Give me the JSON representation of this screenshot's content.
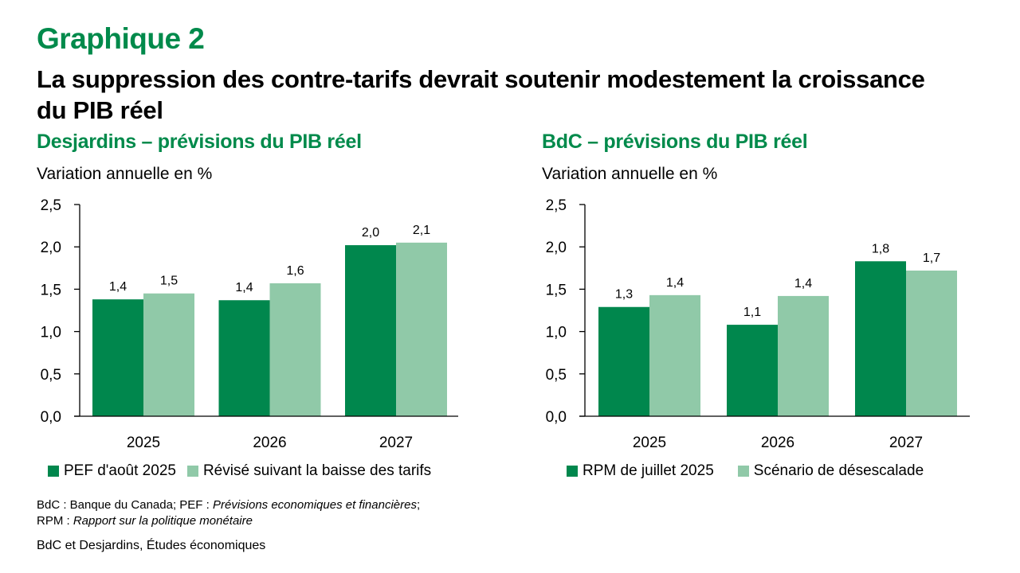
{
  "header": {
    "figure_label": "Graphique 2",
    "title": "La suppression des contre-tarifs devrait soutenir modestement la croissance du PIB réel"
  },
  "colors": {
    "accent": "#008a4b",
    "series_dark": "#00874d",
    "series_light": "#90c9a8",
    "axis": "#000000"
  },
  "chart_data": [
    {
      "type": "bar",
      "title": "Desjardins – prévisions du PIB réel",
      "ylabel": "Variation annuelle en %",
      "xlabel": "",
      "categories": [
        "2025",
        "2026",
        "2027"
      ],
      "ylim": [
        0,
        2.5
      ],
      "yticks": [
        0,
        0.5,
        1.0,
        1.5,
        2.0,
        2.5
      ],
      "ytick_labels": [
        "0,0",
        "0,5",
        "1,0",
        "1,5",
        "2,0",
        "2,5"
      ],
      "grid": false,
      "legend_position": "bottom",
      "series": [
        {
          "name": "PEF d'août 2025",
          "values": [
            1.38,
            1.37,
            2.02
          ],
          "labels": [
            "1,4",
            "1,4",
            "2,0"
          ],
          "color": "#00874d"
        },
        {
          "name": "Révisé suivant la baisse des tarifs",
          "values": [
            1.45,
            1.57,
            2.05
          ],
          "labels": [
            "1,5",
            "1,6",
            "2,1"
          ],
          "color": "#90c9a8"
        }
      ]
    },
    {
      "type": "bar",
      "title": "BdC – prévisions du PIB réel",
      "ylabel": "Variation annuelle en %",
      "xlabel": "",
      "categories": [
        "2025",
        "2026",
        "2027"
      ],
      "ylim": [
        0,
        2.5
      ],
      "yticks": [
        0,
        0.5,
        1.0,
        1.5,
        2.0,
        2.5
      ],
      "ytick_labels": [
        "0,0",
        "0,5",
        "1,0",
        "1,5",
        "2,0",
        "2,5"
      ],
      "grid": false,
      "legend_position": "bottom",
      "series": [
        {
          "name": "RPM de juillet 2025",
          "values": [
            1.29,
            1.08,
            1.83
          ],
          "labels": [
            "1,3",
            "1,1",
            "1,8"
          ],
          "color": "#00874d"
        },
        {
          "name": "Scénario de désescalade",
          "values": [
            1.43,
            1.42,
            1.72
          ],
          "labels": [
            "1,4",
            "1,4",
            "1,7"
          ],
          "color": "#90c9a8"
        }
      ]
    }
  ],
  "notes": {
    "line1_prefix": "BdC : Banque du Canada; PEF : ",
    "line1_italic": "Prévisions economiques et financières",
    "line1_suffix": ";",
    "line2_prefix": "RPM : ",
    "line2_italic": "Rapport sur la politique monétaire",
    "source": "BdC et Desjardins, Études économiques"
  }
}
